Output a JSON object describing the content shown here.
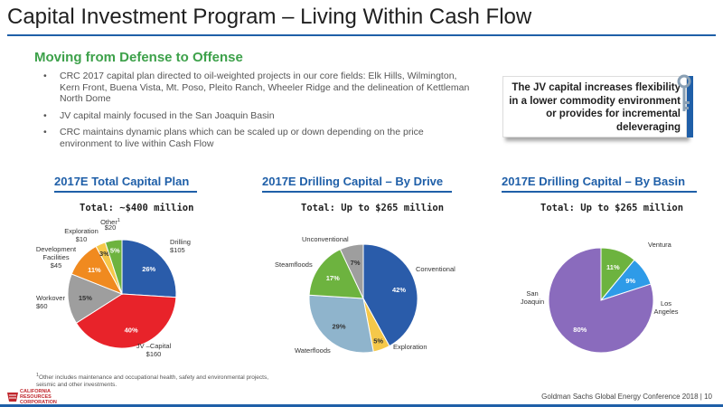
{
  "header": {
    "title": "Capital Investment Program – Living Within Cash Flow",
    "subtitle": "Moving from Defense to Offense"
  },
  "bullets": [
    "CRC 2017 capital plan directed to oil-weighted projects in our core fields: Elk Hills, Wilmington, Kern Front, Buena Vista, Mt. Poso, Pleito Ranch, Wheeler Ridge and the delineation of Kettleman North Dome",
    "JV capital mainly focused in the San Joaquin Basin",
    "CRC maintains dynamic plans which can be scaled up or down depending on the price environment to live within Cash Flow"
  ],
  "callout": {
    "text": "The JV capital increases flexibility in a lower commodity environment or provides for incremental deleveraging",
    "icon": "key-icon"
  },
  "colors": {
    "brand_blue": "#1f5fa8",
    "green_heading": "#3da14a",
    "blue": "#2a5caa",
    "red": "#e8232a",
    "gray": "#9e9e9e",
    "orange": "#f08a1f",
    "yellow": "#f5c84a",
    "green": "#6db33f",
    "light_blue": "#8fb4cc",
    "purple": "#8a6bbd",
    "sky": "#2e9be8"
  },
  "chart_data": [
    {
      "type": "pie",
      "title": "2017E Total Capital Plan",
      "subtitle": "Total: ~$400 million",
      "slices": [
        {
          "name": "Drilling",
          "value": 26,
          "amount": "$105",
          "label": "26%",
          "color": "#2a5caa"
        },
        {
          "name": "JV –Capital",
          "value": 40,
          "amount": "$160",
          "label": "40%",
          "color": "#e8232a"
        },
        {
          "name": "Workover",
          "value": 15,
          "amount": "$60",
          "label": "15%",
          "color": "#9e9e9e"
        },
        {
          "name": "Development Facilities",
          "value": 11,
          "amount": "$45",
          "label": "11%",
          "color": "#f08a1f"
        },
        {
          "name": "Exploration",
          "value": 3,
          "amount": "$10",
          "label": "3%",
          "color": "#f5c84a"
        },
        {
          "name": "Other",
          "value": 5,
          "amount": "$20",
          "label": "5%",
          "color": "#6db33f",
          "superscript": "1"
        }
      ]
    },
    {
      "type": "pie",
      "title": "2017E Drilling Capital – By Drive",
      "subtitle": "Total: Up to $265 million",
      "slices": [
        {
          "name": "Conventional",
          "value": 42,
          "label": "42%",
          "color": "#2a5caa"
        },
        {
          "name": "Exploration",
          "value": 5,
          "label": "5%",
          "color": "#f5c84a"
        },
        {
          "name": "Waterfloods",
          "value": 29,
          "label": "29%",
          "color": "#8fb4cc"
        },
        {
          "name": "Steamfloods",
          "value": 17,
          "label": "17%",
          "color": "#6db33f"
        },
        {
          "name": "Unconventional",
          "value": 7,
          "label": "7%",
          "color": "#9e9e9e"
        }
      ]
    },
    {
      "type": "pie",
      "title": "2017E Drilling Capital – By Basin",
      "subtitle": "Total: Up to $265 million",
      "slices": [
        {
          "name": "Ventura",
          "value": 11,
          "label": "11%",
          "color": "#6db33f"
        },
        {
          "name": "Los Angeles",
          "value": 9,
          "label": "9%",
          "color": "#2e9be8"
        },
        {
          "name": "San Joaquin",
          "value": 80,
          "label": "80%",
          "color": "#8a6bbd"
        }
      ]
    }
  ],
  "footnote": {
    "marker": "1",
    "text": "Other includes maintenance and occupational health, safety and environmental projects, seismic and other investments."
  },
  "logo": {
    "line1": "CALIFORNIA",
    "line2": "RESOURCES",
    "line3": "CORPORATION"
  },
  "footer": "Goldman Sachs Global Energy Conference 2018  |  10"
}
